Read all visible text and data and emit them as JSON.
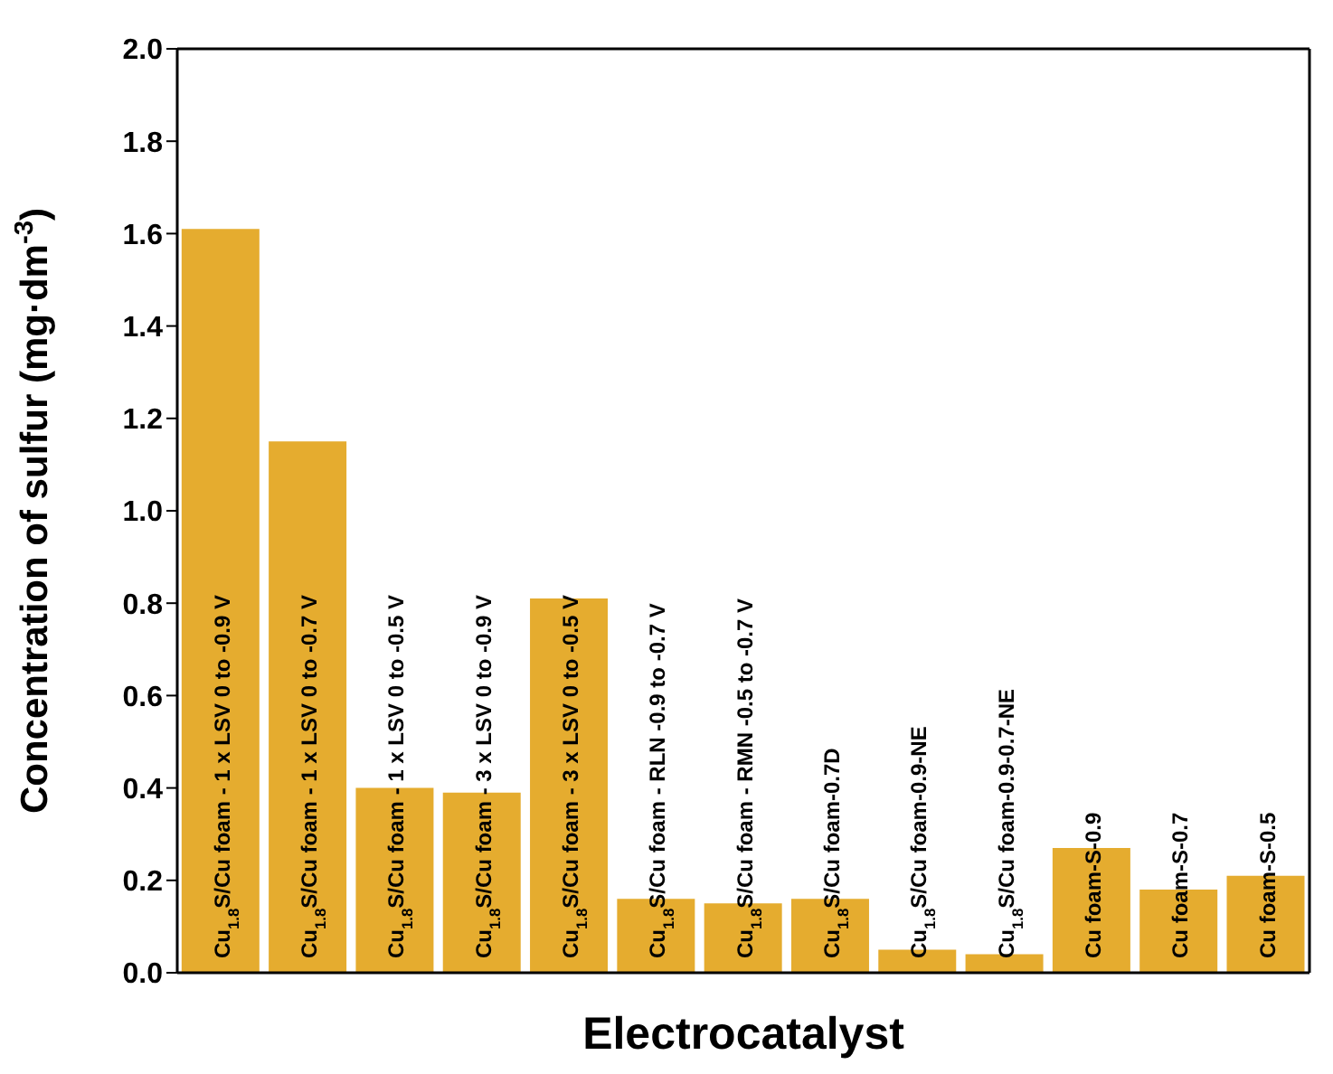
{
  "chart_data": {
    "type": "bar",
    "xlabel": "Electrocatalyst",
    "ylabel": "Concentration of sulfur (mg·dm$^{-3}$)",
    "categories": [
      "Cu$_{1.8}$S/Cu foam - 1 x LSV 0 to -0.9 V",
      "Cu$_{1.8}$S/Cu foam - 1 x LSV 0 to -0.7 V",
      "Cu$_{1.8}$S/Cu foam - 1 x LSV 0 to -0.5 V",
      "Cu$_{1.8}$S/Cu foam - 3 x LSV 0 to -0.9 V",
      "Cu$_{1.8}$S/Cu foam - 3 x LSV 0 to -0.5 V",
      "Cu$_{1.8}$S/Cu foam - RLN -0.9 to -0.7 V",
      "Cu$_{1.8}$S/Cu foam - RMN -0.5 to -0.7 V",
      "Cu$_{1.8}$S/Cu foam-0.7D",
      "Cu$_{1.8}$S/Cu foam-0.9-NE",
      "Cu$_{1.8}$S/Cu foam-0.9-0.7-NE",
      "Cu foam-S-0.9",
      "Cu foam-S-0.7",
      "Cu foam-S-0.5"
    ],
    "values": [
      1.61,
      1.15,
      0.4,
      0.39,
      0.81,
      0.16,
      0.15,
      0.16,
      0.05,
      0.04,
      0.27,
      0.18,
      0.21
    ],
    "color": "#e5ac2f",
    "ylim": [
      0,
      2.0
    ],
    "yticks": [
      {
        "value": 0,
        "label": "0.0"
      },
      {
        "value": 0.2,
        "label": "0.2"
      },
      {
        "value": 0.4,
        "label": "0.4"
      },
      {
        "value": 0.6,
        "label": "0.6"
      },
      {
        "value": 0.8,
        "label": "0.8"
      },
      {
        "value": 1.0,
        "label": "1.0"
      },
      {
        "value": 1.2,
        "label": "1.2"
      },
      {
        "value": 1.4,
        "label": "1.4"
      },
      {
        "value": 1.6,
        "label": "1.6"
      },
      {
        "value": 1.8,
        "label": "1.8"
      },
      {
        "value": 2.0,
        "label": "2.0"
      }
    ]
  }
}
